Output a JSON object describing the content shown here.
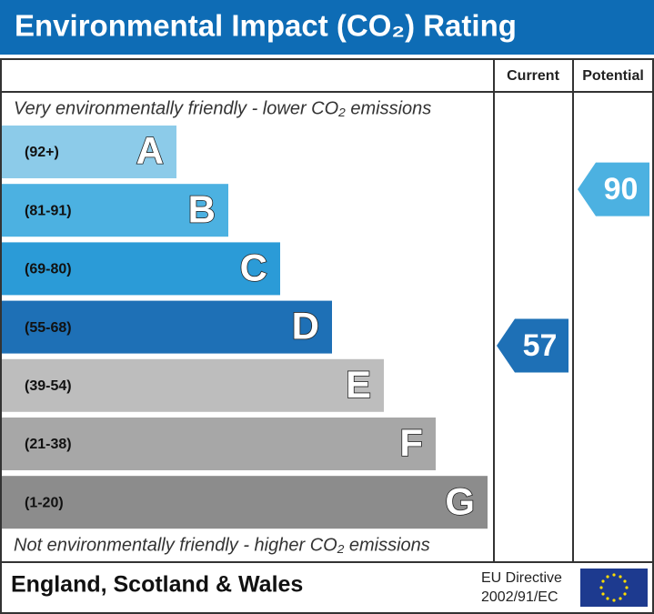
{
  "title": "Environmental Impact (CO₂) Rating",
  "columns": {
    "current": "Current",
    "potential": "Potential"
  },
  "top_note": "Very environmentally friendly - lower CO₂ emissions",
  "bottom_note": "Not environmentally friendly - higher CO₂ emissions",
  "bands": [
    {
      "range": "(92+)",
      "letter": "A",
      "color": "#8ccbe9"
    },
    {
      "range": "(81-91)",
      "letter": "B",
      "color": "#4cb1e1"
    },
    {
      "range": "(69-80)",
      "letter": "C",
      "color": "#2b9bd7"
    },
    {
      "range": "(55-68)",
      "letter": "D",
      "color": "#1e70b6"
    },
    {
      "range": "(39-54)",
      "letter": "E",
      "color": "#bdbdbd"
    },
    {
      "range": "(21-38)",
      "letter": "F",
      "color": "#a7a7a7"
    },
    {
      "range": "(1-20)",
      "letter": "G",
      "color": "#8c8c8c"
    }
  ],
  "current": 57,
  "potential": 90,
  "footer": {
    "region": "England, Scotland & Wales",
    "directive_line1": "EU Directive",
    "directive_line2": "2002/91/EC"
  }
}
